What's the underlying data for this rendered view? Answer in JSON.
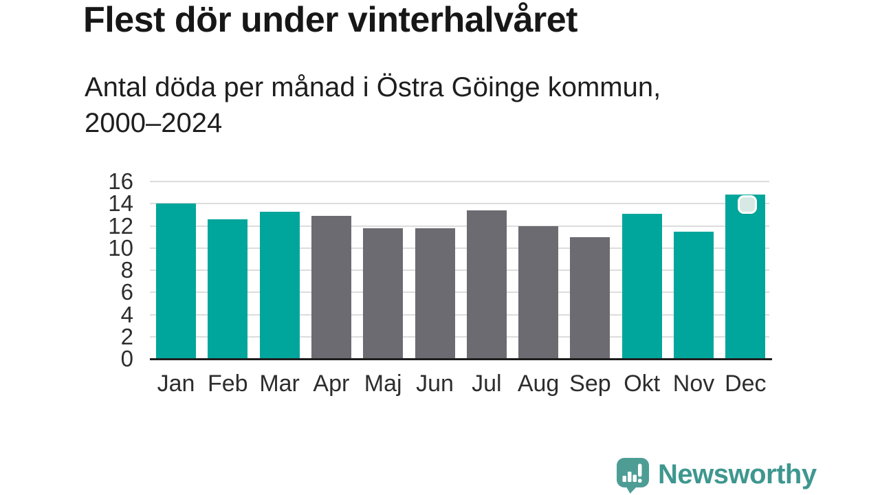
{
  "title": "Flest dör under vinterhalvåret",
  "subtitle_line1": "Antal döda per månad i Östra Göinge kommun,",
  "subtitle_line2": "2000–2024",
  "branding": {
    "wordmark": "Newsworthy",
    "logo_icon": "newsworthy-chart-speech-bubble-icon"
  },
  "colors": {
    "title-color": "#171717",
    "subtitle-color": "#1e1e1e",
    "tick-color": "#2d2d2d",
    "grid-color": "#dcdcdc",
    "axis-color": "#1d1d1d",
    "badge-fill": "#d8e9e5",
    "brand-color": "#3e978f",
    "bubble-color": "#4e9d95"
  },
  "chart_data": {
    "type": "bar",
    "title": "Flest dör under vinterhalvåret",
    "subtitle": "Antal döda per månad i Östra Göinge kommun, 2000–2024",
    "categories": [
      "Jan",
      "Feb",
      "Mar",
      "Apr",
      "Maj",
      "Jun",
      "Jul",
      "Aug",
      "Sep",
      "Okt",
      "Nov",
      "Dec"
    ],
    "values": [
      14.0,
      12.6,
      13.3,
      12.9,
      11.8,
      11.8,
      13.4,
      12.0,
      11.0,
      13.1,
      11.5,
      14.8
    ],
    "highlighted": [
      true,
      true,
      true,
      false,
      false,
      false,
      false,
      false,
      false,
      true,
      true,
      true
    ],
    "bar_colors": {
      "winter": "#00a69b",
      "summer": "#6c6b71"
    },
    "yticks": [
      0,
      2,
      4,
      6,
      8,
      10,
      12,
      14,
      16
    ],
    "ylim": [
      0,
      16
    ],
    "xlabel": "",
    "ylabel": "",
    "grid": "horizontal",
    "legend": "none",
    "annotation": "small pale rounded-square badge near top of Dec bar"
  }
}
